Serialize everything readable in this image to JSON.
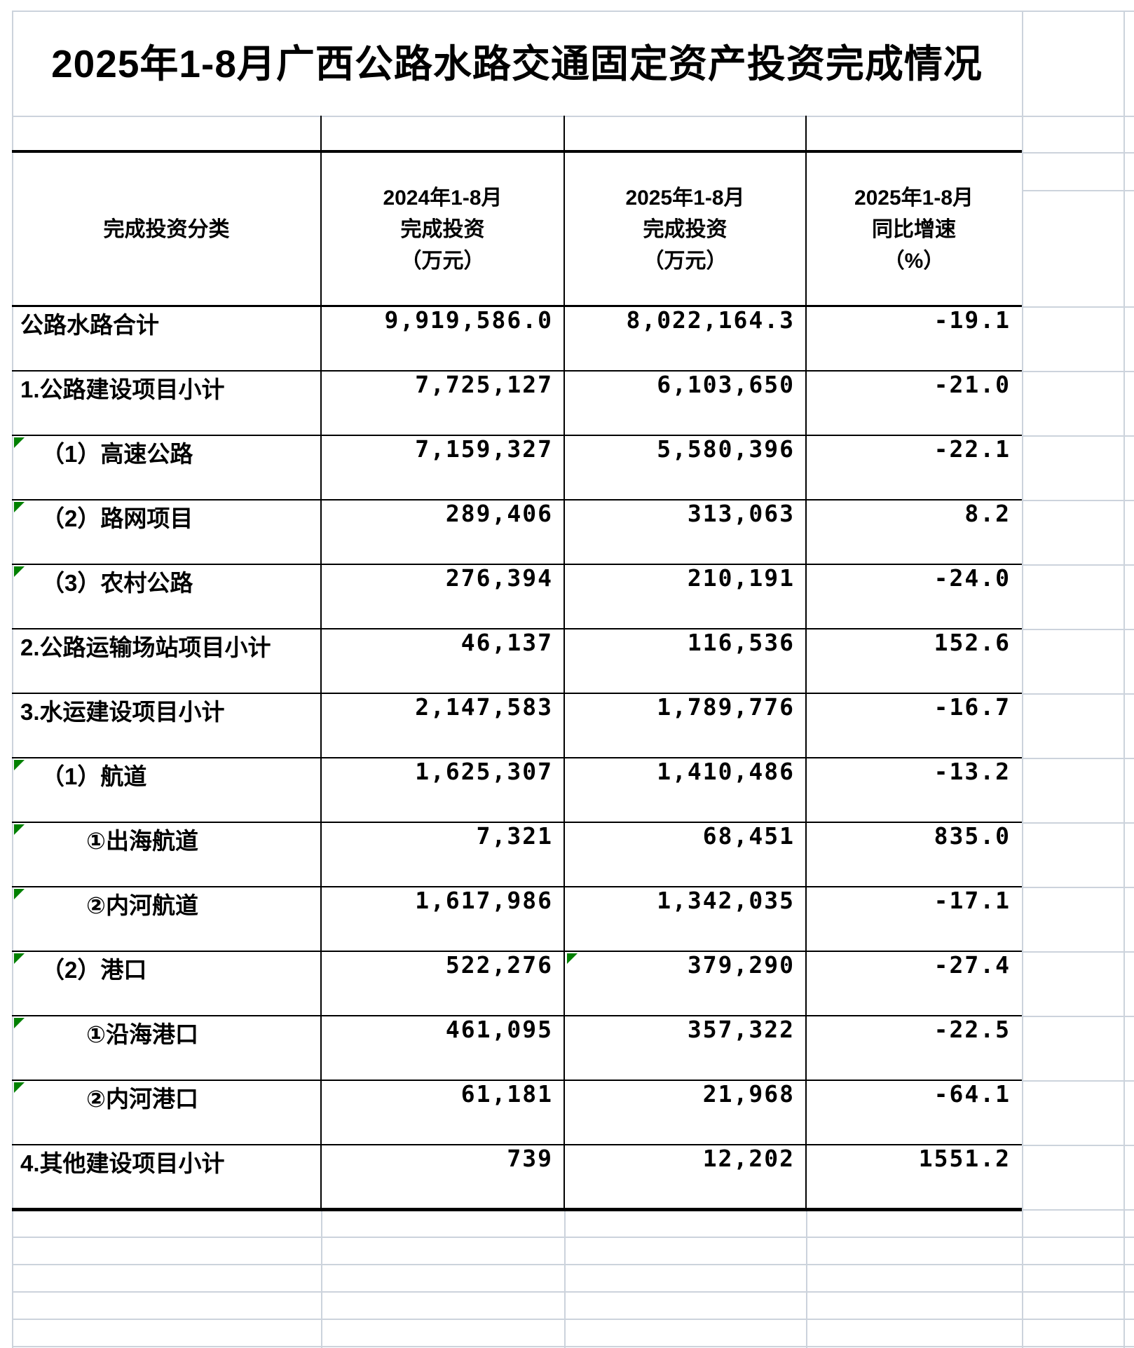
{
  "sheet": {
    "title": "2025年1-8月广西公路水路交通固定资产投资完成情况",
    "header": {
      "category": "完成投资分类",
      "col_2024_lines": [
        "2024年1-8月",
        "完成投资",
        "（万元）"
      ],
      "col_2025_lines": [
        "2025年1-8月",
        "完成投资",
        "（万元）"
      ],
      "col_growth_lines": [
        "2025年1-8月",
        "同比增速",
        "（%）"
      ]
    },
    "rows": [
      {
        "label": "公路水路合计",
        "indent": 0,
        "v2024": "9,919,586.0",
        "v2025": "8,022,164.3",
        "growth": "-19.1",
        "flag": false,
        "flag_v2025": false
      },
      {
        "label": "1.公路建设项目小计",
        "indent": 0,
        "v2024": "7,725,127",
        "v2025": "6,103,650",
        "growth": "-21.0",
        "flag": false,
        "flag_v2025": false
      },
      {
        "label": "（1）高速公路",
        "indent": 1,
        "v2024": "7,159,327",
        "v2025": "5,580,396",
        "growth": "-22.1",
        "flag": true,
        "flag_v2025": false
      },
      {
        "label": "（2）路网项目",
        "indent": 1,
        "v2024": "289,406",
        "v2025": "313,063",
        "growth": "8.2",
        "flag": true,
        "flag_v2025": false
      },
      {
        "label": "（3）农村公路",
        "indent": 1,
        "v2024": "276,394",
        "v2025": "210,191",
        "growth": "-24.0",
        "flag": true,
        "flag_v2025": false
      },
      {
        "label": "2.公路运输场站项目小计",
        "indent": 0,
        "v2024": "46,137",
        "v2025": "116,536",
        "growth": "152.6",
        "flag": false,
        "flag_v2025": false
      },
      {
        "label": "3.水运建设项目小计",
        "indent": 0,
        "v2024": "2,147,583",
        "v2025": "1,789,776",
        "growth": "-16.7",
        "flag": false,
        "flag_v2025": false
      },
      {
        "label": "（1）航道",
        "indent": 1,
        "v2024": "1,625,307",
        "v2025": "1,410,486",
        "growth": "-13.2",
        "flag": true,
        "flag_v2025": false
      },
      {
        "label": "①出海航道",
        "indent": 2,
        "v2024": "7,321",
        "v2025": "68,451",
        "growth": "835.0",
        "flag": true,
        "flag_v2025": false
      },
      {
        "label": "②内河航道",
        "indent": 2,
        "v2024": "1,617,986",
        "v2025": "1,342,035",
        "growth": "-17.1",
        "flag": true,
        "flag_v2025": false
      },
      {
        "label": "（2）港口",
        "indent": 1,
        "v2024": "522,276",
        "v2025": "379,290",
        "growth": "-27.4",
        "flag": true,
        "flag_v2025": true
      },
      {
        "label": "①沿海港口",
        "indent": 2,
        "v2024": "461,095",
        "v2025": "357,322",
        "growth": "-22.5",
        "flag": true,
        "flag_v2025": false
      },
      {
        "label": "②内河港口",
        "indent": 2,
        "v2024": "61,181",
        "v2025": "21,968",
        "growth": "-64.1",
        "flag": true,
        "flag_v2025": false
      },
      {
        "label": "4.其他建设项目小计",
        "indent": 0,
        "v2024": "739",
        "v2025": "12,202",
        "growth": "1551.2",
        "flag": false,
        "flag_v2025": false
      }
    ],
    "colors": {
      "gridline": "#ccd3dc",
      "table_border": "#000000",
      "error_flag_green": "#008000",
      "cell_background": "#ffffff",
      "text": "#000000"
    }
  }
}
